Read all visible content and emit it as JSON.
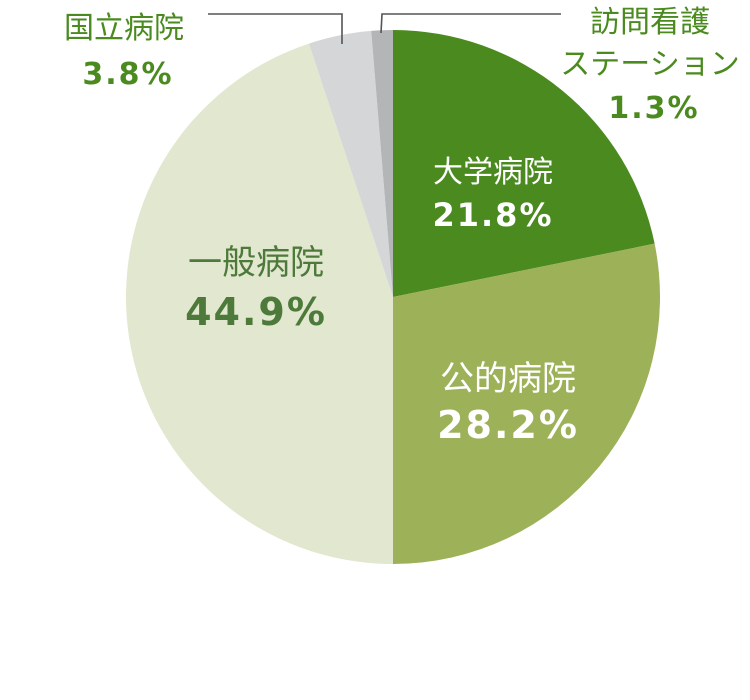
{
  "chart_data": {
    "type": "pie",
    "title": "",
    "slices": [
      {
        "label": "大学病院",
        "label_lines": [
          "大学病院"
        ],
        "value": 21.8,
        "value_text": "21.8%",
        "color": "#4a8a1f",
        "text_color": "#ffffff"
      },
      {
        "label": "公的病院",
        "label_lines": [
          "公的病院"
        ],
        "value": 28.2,
        "value_text": "28.2%",
        "color": "#9cb158",
        "text_color": "#ffffff"
      },
      {
        "label": "一般病院",
        "label_lines": [
          "一般病院"
        ],
        "value": 44.9,
        "value_text": "44.9%",
        "color": "#e2e7cf",
        "text_color": "#4d7a3a"
      },
      {
        "label": "国立病院",
        "label_lines": [
          "国立病院"
        ],
        "value": 3.8,
        "value_text": "3.8%",
        "color": "#d5d6d8",
        "text_color": "#4a8a1f"
      },
      {
        "label": "訪問看護ステーション",
        "label_lines": [
          "訪問看護",
          "ステーション"
        ],
        "value": 1.3,
        "value_text": "1.3%",
        "color": "#b4b5b7",
        "text_color": "#4a8a1f"
      }
    ]
  }
}
